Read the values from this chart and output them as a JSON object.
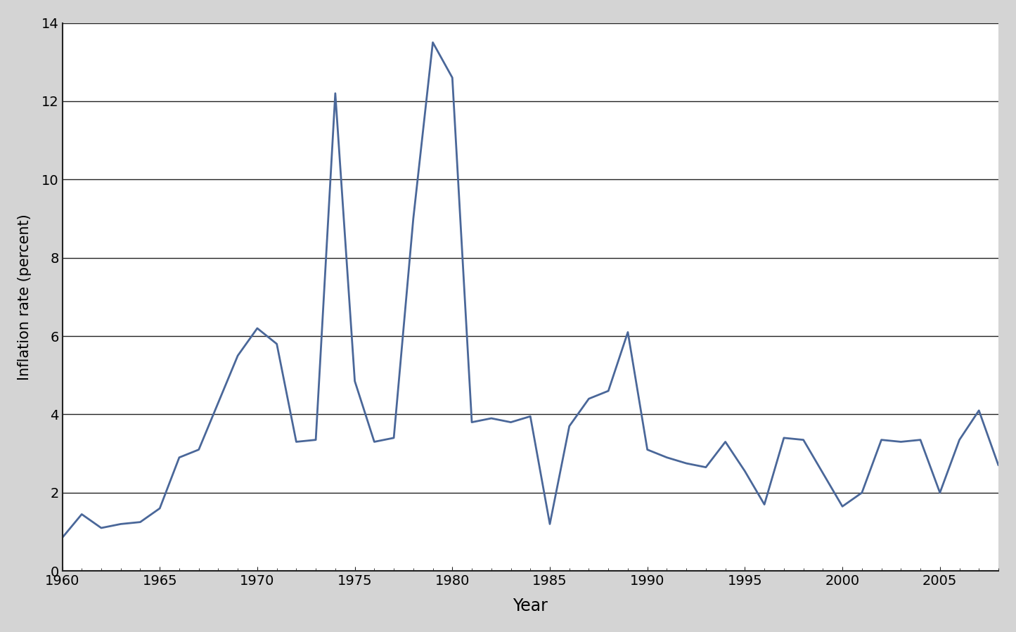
{
  "years": [
    1960,
    1961,
    1962,
    1963,
    1964,
    1965,
    1966,
    1967,
    1968,
    1969,
    1970,
    1971,
    1972,
    1973,
    1974,
    1975,
    1976,
    1977,
    1978,
    1979,
    1980,
    1981,
    1982,
    1983,
    1984,
    1985,
    1986,
    1987,
    1988,
    1989,
    1990,
    1991,
    1992,
    1993,
    1994,
    1995,
    1996,
    1997,
    1998,
    1999,
    2000,
    2001,
    2002,
    2003,
    2004,
    2005,
    2006,
    2007,
    2008
  ],
  "inflation": [
    0.85,
    1.45,
    1.1,
    1.2,
    1.25,
    1.6,
    2.9,
    3.1,
    4.3,
    5.5,
    6.2,
    5.8,
    3.3,
    3.35,
    12.2,
    4.85,
    3.3,
    3.4,
    9.0,
    13.5,
    12.6,
    3.8,
    3.9,
    3.8,
    3.95,
    1.2,
    3.7,
    4.4,
    4.6,
    6.1,
    3.1,
    2.9,
    2.75,
    2.65,
    3.3,
    2.55,
    1.7,
    3.4,
    3.35,
    2.5,
    1.65,
    2.0,
    3.35,
    3.3,
    3.35,
    2.0,
    3.35,
    4.1,
    2.7
  ],
  "line_color": "#4a6799",
  "line_width": 2.0,
  "xlabel": "Year",
  "ylabel": "Inflation rate (percent)",
  "xlim": [
    1960,
    2008
  ],
  "ylim": [
    0,
    14
  ],
  "yticks": [
    0,
    2,
    4,
    6,
    8,
    10,
    12,
    14
  ],
  "xticks": [
    1960,
    1965,
    1970,
    1975,
    1980,
    1985,
    1990,
    1995,
    2000,
    2005
  ],
  "outer_background": "#d4d4d4",
  "plot_background_color": "#ffffff",
  "grid_color": "#222222",
  "grid_linewidth": 1.0,
  "spine_color": "#222222",
  "spine_linewidth": 1.5,
  "xlabel_fontsize": 17,
  "ylabel_fontsize": 15,
  "tick_fontsize": 14
}
